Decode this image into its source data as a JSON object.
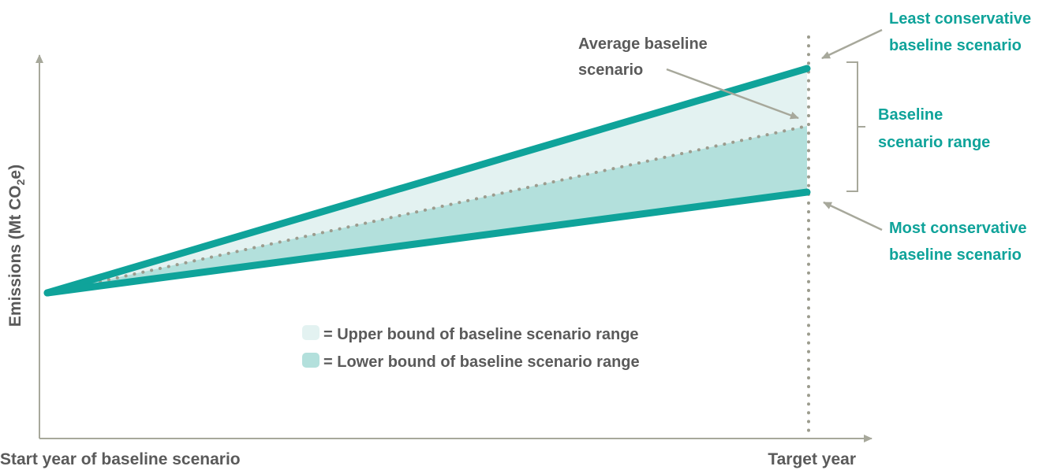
{
  "y_axis": {
    "label_main": "Emissions (Mt CO",
    "label_sub": "2",
    "label_end": "e)"
  },
  "x_axis": {
    "start_label": "Start year of baseline scenario",
    "end_label": "Target year"
  },
  "annotations": {
    "least_line1": "Least conservative",
    "least_line2": "baseline scenario",
    "average_line1": "Average baseline",
    "average_line2": "scenario",
    "range_line1": "Baseline",
    "range_line2": "scenario range",
    "most_line1": "Most conservative",
    "most_line2": "baseline scenario"
  },
  "legend": {
    "upper": "= Upper bound of baseline scenario range",
    "lower": "= Lower bound of baseline scenario range"
  },
  "colors": {
    "scenario_line": "#0fa39a",
    "upper_fill": "#e3f2f1",
    "lower_fill": "#b3e0dc",
    "axis": "#a7a89b",
    "dots": "#9c9c8e",
    "text_dark": "#5a5a5a",
    "text_teal": "#0fa39a"
  }
}
